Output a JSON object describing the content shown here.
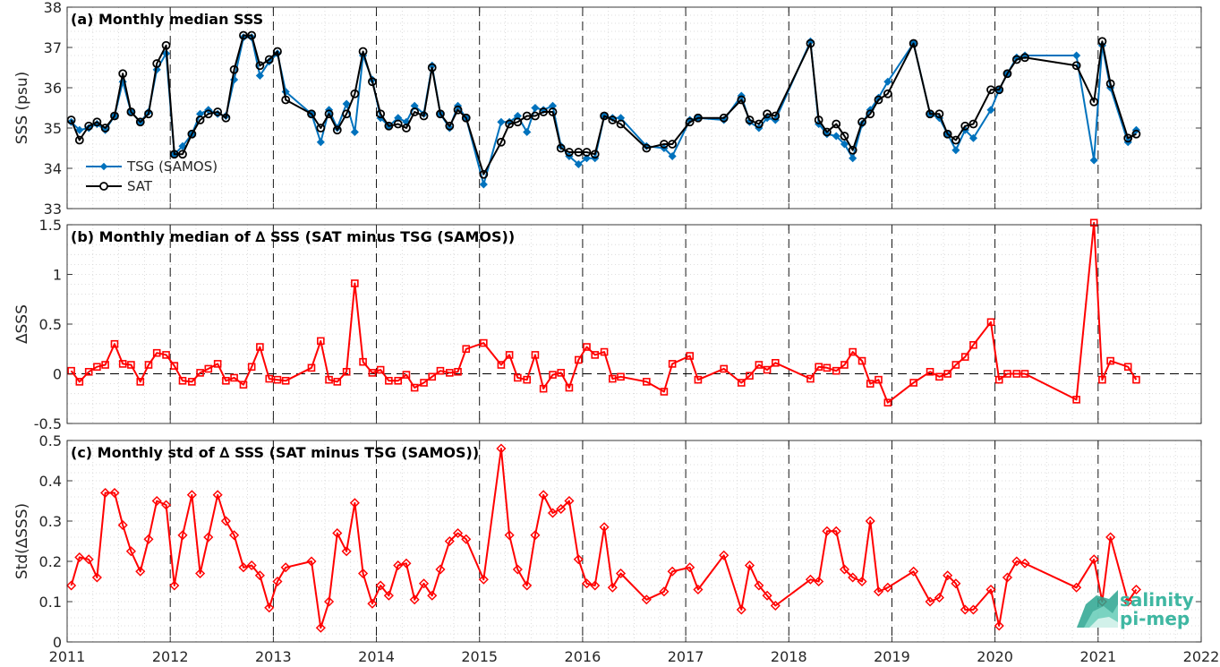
{
  "chart_data": [
    {
      "type": "line",
      "title": "(a) Monthly median SSS",
      "ylabel": "SSS (psu)",
      "xlabel": "",
      "xlim": [
        2011,
        2022
      ],
      "ylim": [
        33,
        38
      ],
      "yticks": [
        33,
        34,
        35,
        36,
        37,
        38
      ],
      "grid": "dotted",
      "legend": "bottom-left",
      "series": [
        {
          "name": "TSG (SAMOS)",
          "color": "#0072BD",
          "marker": "diamond",
          "x": [
            2011.04,
            2011.12,
            2011.21,
            2011.29,
            2011.37,
            2011.46,
            2011.54,
            2011.62,
            2011.71,
            2011.79,
            2011.87,
            2011.96,
            2012.04,
            2012.12,
            2012.21,
            2012.29,
            2012.37,
            2012.46,
            2012.54,
            2012.62,
            2012.71,
            2012.79,
            2012.87,
            2012.96,
            2013.04,
            2013.12,
            2013.37,
            2013.46,
            2013.54,
            2013.62,
            2013.71,
            2013.79,
            2013.87,
            2013.96,
            2014.04,
            2014.12,
            2014.21,
            2014.29,
            2014.37,
            2014.46,
            2014.54,
            2014.62,
            2014.71,
            2014.79,
            2014.87,
            2015.04,
            2015.21,
            2015.29,
            2015.37,
            2015.46,
            2015.54,
            2015.62,
            2015.71,
            2015.79,
            2015.87,
            2015.96,
            2016.04,
            2016.12,
            2016.21,
            2016.29,
            2016.37,
            2016.62,
            2016.79,
            2016.87,
            2017.04,
            2017.12,
            2017.37,
            2017.54,
            2017.62,
            2017.71,
            2017.79,
            2017.87,
            2018.21,
            2018.29,
            2018.37,
            2018.46,
            2018.54,
            2018.62,
            2018.71,
            2018.79,
            2018.87,
            2018.96,
            2019.21,
            2019.37,
            2019.46,
            2019.54,
            2019.62,
            2019.71,
            2019.79,
            2019.96,
            2020.04,
            2020.12,
            2020.21,
            2020.29,
            2020.79,
            2020.96,
            2021.04,
            2021.12,
            2021.29,
            2021.37
          ],
          "values": [
            35.15,
            34.95,
            35.0,
            35.1,
            34.95,
            35.3,
            36.15,
            35.4,
            35.15,
            35.4,
            36.45,
            36.85,
            34.35,
            34.55,
            34.85,
            35.35,
            35.45,
            35.35,
            35.3,
            36.2,
            37.25,
            37.25,
            36.3,
            36.65,
            36.85,
            35.9,
            35.35,
            34.65,
            35.45,
            35.0,
            35.6,
            34.9,
            36.8,
            36.2,
            35.25,
            35.05,
            35.25,
            35.15,
            35.55,
            35.35,
            36.55,
            35.35,
            35.0,
            35.55,
            35.25,
            33.6,
            35.15,
            35.15,
            35.3,
            34.9,
            35.5,
            35.45,
            35.55,
            34.55,
            34.3,
            34.1,
            34.25,
            34.25,
            35.3,
            35.25,
            35.25,
            34.55,
            34.5,
            34.3,
            35.2,
            35.25,
            35.2,
            35.8,
            35.15,
            35.0,
            35.25,
            35.2,
            37.15,
            35.1,
            34.85,
            34.8,
            34.6,
            34.25,
            35.1,
            35.45,
            35.75,
            36.15,
            37.1,
            35.35,
            35.25,
            34.85,
            34.45,
            34.95,
            34.75,
            35.45,
            35.95,
            36.35,
            36.75,
            36.8,
            36.8,
            34.2,
            37.05,
            36.0,
            34.65,
            34.95
          ]
        },
        {
          "name": "SAT",
          "color": "#000000",
          "marker": "circle",
          "x": [
            2011.04,
            2011.12,
            2011.21,
            2011.29,
            2011.37,
            2011.46,
            2011.54,
            2011.62,
            2011.71,
            2011.79,
            2011.87,
            2011.96,
            2012.04,
            2012.12,
            2012.21,
            2012.29,
            2012.37,
            2012.46,
            2012.54,
            2012.62,
            2012.71,
            2012.79,
            2012.87,
            2012.96,
            2013.04,
            2013.12,
            2013.37,
            2013.46,
            2013.54,
            2013.62,
            2013.71,
            2013.79,
            2013.87,
            2013.96,
            2014.04,
            2014.12,
            2014.21,
            2014.29,
            2014.37,
            2014.46,
            2014.54,
            2014.62,
            2014.71,
            2014.79,
            2014.87,
            2015.04,
            2015.21,
            2015.29,
            2015.37,
            2015.46,
            2015.54,
            2015.62,
            2015.71,
            2015.79,
            2015.87,
            2015.96,
            2016.04,
            2016.12,
            2016.21,
            2016.29,
            2016.37,
            2016.62,
            2016.79,
            2016.87,
            2017.04,
            2017.12,
            2017.37,
            2017.54,
            2017.62,
            2017.71,
            2017.79,
            2017.87,
            2018.21,
            2018.29,
            2018.37,
            2018.46,
            2018.54,
            2018.62,
            2018.71,
            2018.79,
            2018.87,
            2018.96,
            2019.21,
            2019.37,
            2019.46,
            2019.54,
            2019.62,
            2019.71,
            2019.79,
            2019.96,
            2020.04,
            2020.12,
            2020.21,
            2020.29,
            2020.79,
            2020.96,
            2021.04,
            2021.12,
            2021.29,
            2021.37
          ],
          "values": [
            35.2,
            34.7,
            35.05,
            35.15,
            35.0,
            35.3,
            36.35,
            35.4,
            35.15,
            35.35,
            36.6,
            37.05,
            34.35,
            34.35,
            34.85,
            35.2,
            35.35,
            35.4,
            35.25,
            36.45,
            37.3,
            37.3,
            36.55,
            36.7,
            36.9,
            35.7,
            35.35,
            35.0,
            35.35,
            34.95,
            35.35,
            35.85,
            36.9,
            36.15,
            35.35,
            35.05,
            35.1,
            35.0,
            35.4,
            35.3,
            36.5,
            35.35,
            35.05,
            35.45,
            35.25,
            33.85,
            34.65,
            35.1,
            35.15,
            35.3,
            35.3,
            35.4,
            35.4,
            34.5,
            34.4,
            34.4,
            34.4,
            34.35,
            35.3,
            35.2,
            35.1,
            34.5,
            34.6,
            34.6,
            35.15,
            35.25,
            35.25,
            35.7,
            35.2,
            35.1,
            35.35,
            35.3,
            37.1,
            35.2,
            34.9,
            35.1,
            34.8,
            34.45,
            35.15,
            35.35,
            35.7,
            35.85,
            37.1,
            35.35,
            35.35,
            34.85,
            34.7,
            35.05,
            35.1,
            35.95,
            35.95,
            36.35,
            36.7,
            36.75,
            36.55,
            35.65,
            37.15,
            36.1,
            34.75,
            34.85
          ]
        }
      ]
    },
    {
      "type": "line",
      "title": "(b) Monthly median of ∆ SSS (SAT minus TSG (SAMOS))",
      "ylabel": "∆SSS",
      "xlabel": "",
      "xlim": [
        2011,
        2022
      ],
      "ylim": [
        -0.5,
        1.5
      ],
      "yticks": [
        -0.5,
        0,
        0.5,
        1,
        1.5
      ],
      "ytick_labels": [
        "-0.5",
        "0",
        "0.5",
        "1",
        "1.5"
      ],
      "grid": "dotted",
      "series": [
        {
          "name": "",
          "color": "#FF0000",
          "marker": "square",
          "x": [
            2011.04,
            2011.12,
            2011.21,
            2011.29,
            2011.37,
            2011.46,
            2011.54,
            2011.62,
            2011.71,
            2011.79,
            2011.87,
            2011.96,
            2012.04,
            2012.12,
            2012.21,
            2012.29,
            2012.37,
            2012.46,
            2012.54,
            2012.62,
            2012.71,
            2012.79,
            2012.87,
            2012.96,
            2013.04,
            2013.12,
            2013.37,
            2013.46,
            2013.54,
            2013.62,
            2013.71,
            2013.79,
            2013.87,
            2013.96,
            2014.04,
            2014.12,
            2014.21,
            2014.29,
            2014.37,
            2014.46,
            2014.54,
            2014.62,
            2014.71,
            2014.79,
            2014.87,
            2015.04,
            2015.21,
            2015.29,
            2015.37,
            2015.46,
            2015.54,
            2015.62,
            2015.71,
            2015.79,
            2015.87,
            2015.96,
            2016.04,
            2016.12,
            2016.21,
            2016.29,
            2016.37,
            2016.62,
            2016.79,
            2016.87,
            2017.04,
            2017.12,
            2017.37,
            2017.54,
            2017.62,
            2017.71,
            2017.79,
            2017.87,
            2018.21,
            2018.29,
            2018.37,
            2018.46,
            2018.54,
            2018.62,
            2018.71,
            2018.79,
            2018.87,
            2018.96,
            2019.21,
            2019.37,
            2019.46,
            2019.54,
            2019.62,
            2019.71,
            2019.79,
            2019.96,
            2020.04,
            2020.12,
            2020.21,
            2020.29,
            2020.79,
            2020.96,
            2021.04,
            2021.12,
            2021.29,
            2021.37
          ],
          "values": [
            0.03,
            -0.08,
            0.02,
            0.07,
            0.09,
            0.3,
            0.1,
            0.09,
            -0.08,
            0.09,
            0.21,
            0.19,
            0.08,
            -0.07,
            -0.08,
            0.01,
            0.05,
            0.1,
            -0.07,
            -0.04,
            -0.11,
            0.07,
            0.27,
            -0.05,
            -0.06,
            -0.07,
            0.06,
            0.33,
            -0.06,
            -0.08,
            0.02,
            0.91,
            0.12,
            0.01,
            0.04,
            -0.07,
            -0.07,
            -0.01,
            -0.14,
            -0.09,
            -0.03,
            0.03,
            0.01,
            0.02,
            0.25,
            0.31,
            0.09,
            0.19,
            -0.04,
            -0.06,
            0.19,
            -0.15,
            -0.01,
            0.01,
            -0.14,
            0.14,
            0.27,
            0.19,
            0.22,
            -0.05,
            -0.03,
            -0.08,
            -0.18,
            0.1,
            0.18,
            -0.06,
            0.05,
            -0.09,
            -0.02,
            0.09,
            0.04,
            0.11,
            -0.05,
            0.07,
            0.06,
            0.03,
            0.09,
            0.22,
            0.13,
            -0.1,
            -0.06,
            -0.29,
            -0.09,
            0.02,
            -0.03,
            0.0,
            0.09,
            0.17,
            0.29,
            0.52,
            -0.06,
            0.0,
            0.0,
            0.0,
            -0.26,
            1.52,
            -0.06,
            0.13,
            0.07,
            -0.06
          ]
        }
      ]
    },
    {
      "type": "line",
      "title": "(c) Monthly std of ∆ SSS (SAT minus TSG (SAMOS))",
      "ylabel": "Std(∆SSS)",
      "xlabel": "",
      "xlim": [
        2011,
        2022
      ],
      "ylim": [
        0,
        0.5
      ],
      "yticks": [
        0,
        0.1,
        0.2,
        0.3,
        0.4,
        0.5
      ],
      "ytick_labels": [
        "0",
        "0.1",
        "0.2",
        "0.3",
        "0.4",
        "0.5"
      ],
      "xticks": [
        2011,
        2012,
        2013,
        2014,
        2015,
        2016,
        2017,
        2018,
        2019,
        2020,
        2021,
        2022
      ],
      "xtick_labels": [
        "2011",
        "2012",
        "2013",
        "2014",
        "2015",
        "2016",
        "2017",
        "2018",
        "2019",
        "2020",
        "2021",
        "2022"
      ],
      "grid": "dotted",
      "series": [
        {
          "name": "",
          "color": "#FF0000",
          "marker": "diamond",
          "x": [
            2011.04,
            2011.12,
            2011.21,
            2011.29,
            2011.37,
            2011.46,
            2011.54,
            2011.62,
            2011.71,
            2011.79,
            2011.87,
            2011.96,
            2012.04,
            2012.12,
            2012.21,
            2012.29,
            2012.37,
            2012.46,
            2012.54,
            2012.62,
            2012.71,
            2012.79,
            2012.87,
            2012.96,
            2013.04,
            2013.12,
            2013.37,
            2013.46,
            2013.54,
            2013.62,
            2013.71,
            2013.79,
            2013.87,
            2013.96,
            2014.04,
            2014.12,
            2014.21,
            2014.29,
            2014.37,
            2014.46,
            2014.54,
            2014.62,
            2014.71,
            2014.79,
            2014.87,
            2015.04,
            2015.21,
            2015.29,
            2015.37,
            2015.46,
            2015.54,
            2015.62,
            2015.71,
            2015.79,
            2015.87,
            2015.96,
            2016.04,
            2016.12,
            2016.21,
            2016.29,
            2016.37,
            2016.62,
            2016.79,
            2016.87,
            2017.04,
            2017.12,
            2017.37,
            2017.54,
            2017.62,
            2017.71,
            2017.79,
            2017.87,
            2018.21,
            2018.29,
            2018.37,
            2018.46,
            2018.54,
            2018.62,
            2018.71,
            2018.79,
            2018.87,
            2018.96,
            2019.21,
            2019.37,
            2019.46,
            2019.54,
            2019.62,
            2019.71,
            2019.79,
            2019.96,
            2020.04,
            2020.12,
            2020.21,
            2020.29,
            2020.79,
            2020.96,
            2021.04,
            2021.12,
            2021.29,
            2021.37
          ],
          "values": [
            0.14,
            0.21,
            0.205,
            0.16,
            0.37,
            0.37,
            0.29,
            0.225,
            0.175,
            0.255,
            0.35,
            0.34,
            0.14,
            0.265,
            0.365,
            0.17,
            0.26,
            0.365,
            0.3,
            0.265,
            0.185,
            0.19,
            0.165,
            0.085,
            0.15,
            0.185,
            0.2,
            0.035,
            0.1,
            0.27,
            0.225,
            0.345,
            0.17,
            0.095,
            0.14,
            0.115,
            0.19,
            0.195,
            0.105,
            0.145,
            0.115,
            0.18,
            0.25,
            0.27,
            0.255,
            0.155,
            0.48,
            0.265,
            0.18,
            0.14,
            0.265,
            0.365,
            0.32,
            0.33,
            0.35,
            0.205,
            0.145,
            0.14,
            0.285,
            0.135,
            0.17,
            0.105,
            0.125,
            0.175,
            0.185,
            0.13,
            0.215,
            0.08,
            0.19,
            0.14,
            0.115,
            0.09,
            0.155,
            0.15,
            0.275,
            0.275,
            0.18,
            0.16,
            0.15,
            0.3,
            0.125,
            0.135,
            0.175,
            0.1,
            0.11,
            0.165,
            0.145,
            0.08,
            0.08,
            0.13,
            0.04,
            0.16,
            0.2,
            0.195,
            0.135,
            0.205,
            0.1,
            0.26,
            0.1,
            0.13
          ]
        }
      ]
    }
  ]
}
